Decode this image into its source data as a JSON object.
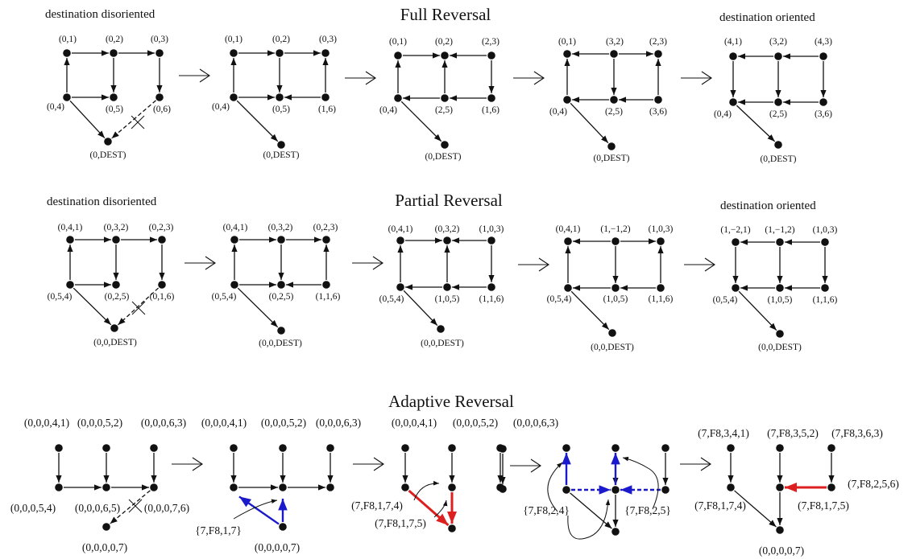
{
  "colors": {
    "ink": "#111111",
    "blue": "#1a1acc",
    "red": "#dd1f1f"
  },
  "sections": {
    "full": {
      "title": "Full Reversal",
      "left_label": "destination disoriented",
      "right_label": "destination oriented"
    },
    "partial": {
      "title": "Partial Reversal",
      "left_label": "destination disoriented",
      "right_label": "destination oriented"
    },
    "adaptive": {
      "title": "Adaptive Reversal"
    }
  },
  "full_labels": [
    [
      "(0,1)",
      "(0,2)",
      "(0,3)",
      "(0,4)",
      "(0,5)",
      "(0,6)",
      "(0,DEST)"
    ],
    [
      "(0,1)",
      "(0,2)",
      "(0,3)",
      "(0,4)",
      "(0,5)",
      "(1,6)",
      "(0,DEST)"
    ],
    [
      "(0,1)",
      "(0,2)",
      "(2,3)",
      "(0,4)",
      "(2,5)",
      "(1,6)",
      "(0,DEST)"
    ],
    [
      "(0,1)",
      "(3,2)",
      "(2,3)",
      "(0,4)",
      "(2,5)",
      "(3,6)",
      "(0,DEST)"
    ],
    [
      "(4,1)",
      "(3,2)",
      "(4,3)",
      "(0,4)",
      "(2,5)",
      "(3,6)",
      "(0,DEST)"
    ]
  ],
  "partial_labels": [
    [
      "(0,4,1)",
      "(0,3,2)",
      "(0,2,3)",
      "(0,5,4)",
      "(0,2,5)",
      "(0,1,6)",
      "(0,0,DEST)"
    ],
    [
      "(0,4,1)",
      "(0,3,2)",
      "(0,2,3)",
      "(0,5,4)",
      "(0,2,5)",
      "(1,1,6)",
      "(0,0,DEST)"
    ],
    [
      "(0,4,1)",
      "(0,3,2)",
      "(1,0,3)",
      "(0,5,4)",
      "(1,0,5)",
      "(1,1,6)",
      "(0,0,DEST)"
    ],
    [
      "(0,4,1)",
      "(1,−1,2)",
      "(1,0,3)",
      "(0,5,4)",
      "(1,0,5)",
      "(1,1,6)",
      "(0,0,DEST)"
    ],
    [
      "(1,−2,1)",
      "(1,−1,2)",
      "(1,0,3)",
      "(0,5,4)",
      "(1,0,5)",
      "(1,1,6)",
      "(0,0,DEST)"
    ]
  ],
  "adaptive_labels": {
    "s1": [
      "(0,0,0,4,1)",
      "(0,0,0,5,2)",
      "(0,0,0,6,3)",
      "(0,0,0,5,4)",
      "(0,0,0,6,5)",
      "(0,0,0,7,6)",
      "(0,0,0,0,7)"
    ],
    "s2": [
      "(0,0,0,4,1)",
      "(0,0,0,5,2)",
      "(0,0,0,6,3)",
      "{7,F8,1,7}",
      "(0,0,0,0,7)"
    ],
    "s3": [
      "(0,0,0,4,1)",
      "(0,0,0,5,2)",
      "(0,0,0,6,3)",
      "(7,F8,1,7,4)",
      "(7,F8,1,7,5)"
    ],
    "s4": [
      "{7,F8,2,4}",
      "{7,F8,2,5}"
    ],
    "s5": [
      "(7,F8,3,4,1)",
      "(7,F8,3,5,2)",
      "(7,F8,3,6,3)",
      "(7,F8,2,5,6)",
      "(7,F8,1,7,4)",
      "(7,F8,1,7,5)",
      "(0,0,0,0,7)"
    ]
  }
}
